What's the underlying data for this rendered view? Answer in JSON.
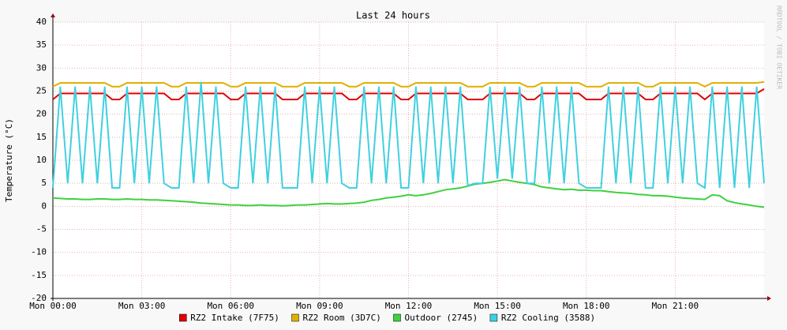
{
  "chart_data": {
    "type": "line",
    "title": "Last 24 hours",
    "y_label": "Temperature (°C)",
    "watermark": "RRDTOOL / TOBI OETIKER",
    "x": [
      0,
      0.25,
      0.5,
      0.75,
      1,
      1.25,
      1.5,
      1.75,
      2,
      2.25,
      2.5,
      2.75,
      3,
      3.25,
      3.5,
      3.75,
      4,
      4.25,
      4.5,
      4.75,
      5,
      5.25,
      5.5,
      5.75,
      6,
      6.25,
      6.5,
      6.75,
      7,
      7.25,
      7.5,
      7.75,
      8,
      8.25,
      8.5,
      8.75,
      9,
      9.25,
      9.5,
      9.75,
      10,
      10.25,
      10.5,
      10.75,
      11,
      11.25,
      11.5,
      11.75,
      12,
      12.25,
      12.5,
      12.75,
      13,
      13.25,
      13.5,
      13.75,
      14,
      14.25,
      14.5,
      14.75,
      15,
      15.25,
      15.5,
      15.75,
      16,
      16.25,
      16.5,
      16.75,
      17,
      17.25,
      17.5,
      17.75,
      18,
      18.25,
      18.5,
      18.75,
      19,
      19.25,
      19.5,
      19.75,
      20,
      20.25,
      20.5,
      20.75,
      21,
      21.25,
      21.5,
      21.75,
      22,
      22.25,
      22.5,
      22.75,
      23,
      23.25,
      23.5,
      23.75,
      24
    ],
    "xlim": [
      0,
      24
    ],
    "xticks": [
      {
        "value": 0,
        "label": "Mon 00:00"
      },
      {
        "value": 3,
        "label": "Mon 03:00"
      },
      {
        "value": 6,
        "label": "Mon 06:00"
      },
      {
        "value": 9,
        "label": "Mon 09:00"
      },
      {
        "value": 12,
        "label": "Mon 12:00"
      },
      {
        "value": 15,
        "label": "Mon 15:00"
      },
      {
        "value": 18,
        "label": "Mon 18:00"
      },
      {
        "value": 21,
        "label": "Mon 21:00"
      }
    ],
    "ylim": [
      -20,
      40
    ],
    "yticks": [
      -20,
      -15,
      -10,
      -5,
      0,
      5,
      10,
      15,
      20,
      25,
      30,
      35,
      40
    ],
    "grid": true,
    "series": [
      {
        "name": "RZ2 Intake (7F75)",
        "color": "#e00000",
        "values": [
          23.2,
          24.5,
          24.5,
          24.5,
          24.5,
          24.5,
          24.5,
          24.5,
          23.2,
          23.2,
          24.5,
          24.5,
          24.5,
          24.5,
          24.5,
          24.5,
          23.2,
          23.2,
          24.5,
          24.5,
          24.5,
          24.5,
          24.5,
          24.5,
          23.2,
          23.2,
          24.5,
          24.5,
          24.5,
          24.5,
          24.5,
          23.2,
          23.2,
          23.2,
          24.5,
          24.5,
          24.5,
          24.5,
          24.5,
          24.5,
          23.2,
          23.2,
          24.5,
          24.5,
          24.5,
          24.5,
          24.5,
          23.2,
          23.2,
          24.5,
          24.5,
          24.5,
          24.5,
          24.5,
          24.5,
          24.5,
          23.2,
          23.2,
          23.2,
          24.5,
          24.5,
          24.5,
          24.5,
          24.5,
          23.2,
          23.2,
          24.5,
          24.5,
          24.5,
          24.5,
          24.5,
          24.5,
          23.2,
          23.2,
          23.2,
          24.5,
          24.5,
          24.5,
          24.5,
          24.5,
          23.2,
          23.2,
          24.5,
          24.5,
          24.5,
          24.5,
          24.5,
          24.5,
          23.2,
          24.5,
          24.5,
          24.5,
          24.5,
          24.5,
          24.5,
          24.5,
          25.5
        ]
      },
      {
        "name": "RZ2 Room (3D7C)",
        "color": "#e0b000",
        "values": [
          26,
          26.8,
          26.8,
          26.8,
          26.8,
          26.8,
          26.8,
          26.8,
          26,
          26,
          26.8,
          26.8,
          26.8,
          26.8,
          26.8,
          26.8,
          26,
          26,
          26.8,
          26.8,
          26.8,
          26.8,
          26.8,
          26.8,
          26,
          26,
          26.8,
          26.8,
          26.8,
          26.8,
          26.8,
          26,
          26,
          26,
          26.8,
          26.8,
          26.8,
          26.8,
          26.8,
          26.8,
          26,
          26,
          26.8,
          26.8,
          26.8,
          26.8,
          26.8,
          26,
          26,
          26.8,
          26.8,
          26.8,
          26.8,
          26.8,
          26.8,
          26.8,
          26,
          26,
          26,
          26.8,
          26.8,
          26.8,
          26.8,
          26.8,
          26,
          26,
          26.8,
          26.8,
          26.8,
          26.8,
          26.8,
          26.8,
          26,
          26,
          26,
          26.8,
          26.8,
          26.8,
          26.8,
          26.8,
          26,
          26,
          26.8,
          26.8,
          26.8,
          26.8,
          26.8,
          26.8,
          26,
          26.8,
          26.8,
          26.8,
          26.8,
          26.8,
          26.8,
          26.8,
          27
        ]
      },
      {
        "name": "Outdoor (2745)",
        "color": "#40d040",
        "values": [
          1.8,
          1.7,
          1.6,
          1.6,
          1.5,
          1.5,
          1.6,
          1.6,
          1.5,
          1.5,
          1.6,
          1.5,
          1.5,
          1.4,
          1.4,
          1.3,
          1.2,
          1.1,
          1.0,
          0.9,
          0.7,
          0.6,
          0.5,
          0.4,
          0.3,
          0.3,
          0.2,
          0.2,
          0.3,
          0.2,
          0.2,
          0.1,
          0.2,
          0.3,
          0.3,
          0.4,
          0.5,
          0.6,
          0.5,
          0.5,
          0.6,
          0.7,
          0.9,
          1.3,
          1.5,
          1.8,
          2.0,
          2.2,
          2.5,
          2.3,
          2.5,
          2.8,
          3.2,
          3.6,
          3.8,
          4.0,
          4.4,
          4.8,
          5.0,
          5.2,
          5.5,
          5.8,
          5.5,
          5.2,
          5.0,
          4.7,
          4.2,
          4.0,
          3.8,
          3.6,
          3.7,
          3.5,
          3.5,
          3.4,
          3.4,
          3.2,
          3.0,
          2.9,
          2.8,
          2.6,
          2.5,
          2.3,
          2.3,
          2.2,
          2.0,
          1.8,
          1.7,
          1.6,
          1.5,
          2.5,
          2.3,
          1.2,
          0.8,
          0.5,
          0.3,
          0.0,
          -0.2
        ]
      },
      {
        "name": "RZ2 Cooling (3588)",
        "color": "#40d0e0",
        "values": [
          4,
          26,
          5,
          26,
          5,
          26,
          5,
          26,
          4,
          4,
          26,
          5,
          26,
          5,
          26,
          5,
          4,
          4,
          26,
          5,
          27,
          5,
          26,
          5,
          4,
          4,
          26,
          5,
          26,
          5,
          26,
          4,
          4,
          4,
          26,
          5,
          26,
          5,
          26,
          5,
          4,
          4,
          26,
          5,
          26,
          5,
          26,
          4,
          4,
          26,
          5,
          26,
          5,
          26,
          5,
          26,
          4.5,
          5,
          5,
          26,
          6,
          26,
          6,
          26,
          5,
          5,
          26,
          5,
          26,
          5,
          26,
          5,
          4,
          4,
          4,
          26,
          5,
          26,
          5,
          26,
          4,
          4,
          26,
          5,
          26,
          5,
          26,
          5,
          4,
          26,
          4,
          26,
          4,
          26,
          4,
          26,
          5
        ]
      }
    ]
  }
}
